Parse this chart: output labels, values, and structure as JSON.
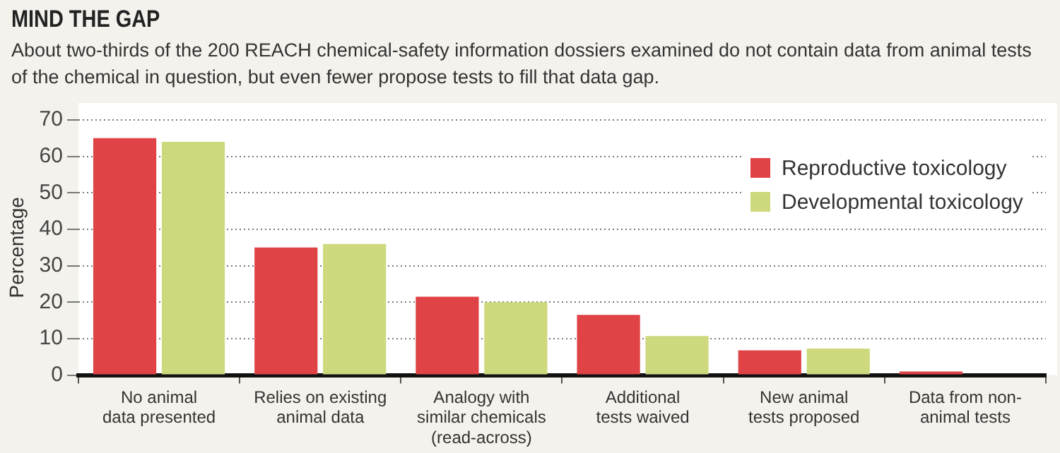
{
  "chart_data": {
    "type": "bar",
    "title": "MIND THE GAP",
    "subtitle": "About two-thirds of the 200 REACH chemical-safety information dossiers examined do not contain data from animal tests of the chemical in question, but even fewer propose tests to fill that data gap.",
    "ylabel": "Percentage",
    "categories": [
      "No animal\ndata presented",
      "Relies on existing\nanimal data",
      "Analogy with\nsimilar chemicals\n(read-across)",
      "Additional\ntests waived",
      "New animal\ntests proposed",
      "Data from non-\nanimal tests"
    ],
    "series": [
      {
        "name": "Reproductive toxicology",
        "color": "#e04346",
        "values": [
          65,
          35,
          21.5,
          16.5,
          6.8,
          1
        ]
      },
      {
        "name": "Developmental toxicology",
        "color": "#cdd97c",
        "values": [
          64,
          36,
          20,
          10.7,
          7.3,
          0
        ]
      }
    ],
    "ylim": [
      0,
      70
    ],
    "yticks": [
      0,
      10,
      20,
      30,
      40,
      50,
      60,
      70
    ],
    "grid": "y",
    "legend": "top right"
  }
}
